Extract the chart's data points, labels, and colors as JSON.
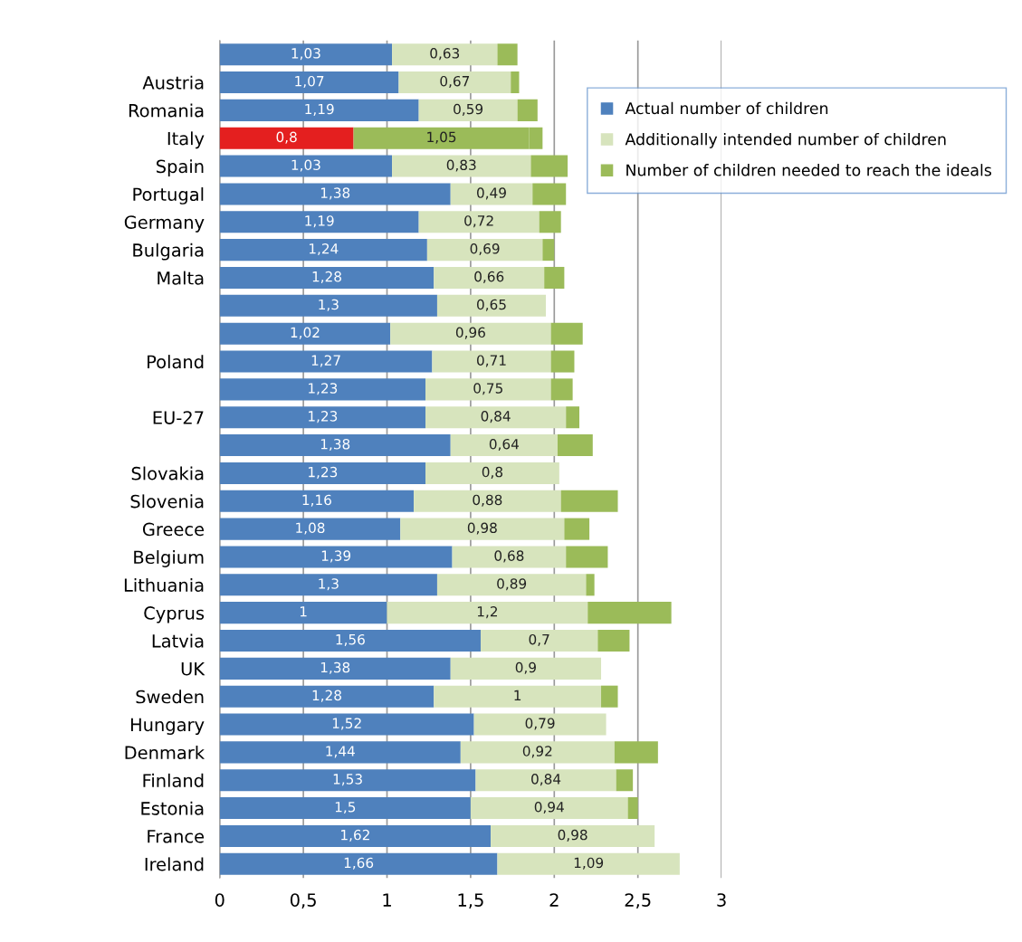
{
  "chart_data": {
    "type": "bar",
    "orientation": "horizontal",
    "stacked": true,
    "categories": [
      null,
      "Austria",
      "Romania",
      "Italy",
      "Spain",
      "Portugal",
      "Germany",
      "Bulgaria",
      "Malta",
      null,
      null,
      "Poland",
      null,
      "EU-27",
      null,
      "Slovakia",
      "Slovenia",
      "Greece",
      "Belgium",
      "Lithuania",
      "Cyprus",
      "Latvia",
      "UK",
      "Sweden",
      "Hungary",
      "Denmark",
      "Finland",
      "Estonia",
      "France",
      "Ireland"
    ],
    "series": [
      {
        "name": "Actual number of children",
        "color": "#4f81bd",
        "colors": [
          "#4f81bd",
          "#4f81bd",
          "#4f81bd",
          "#e41f1f",
          "#4f81bd",
          "#4f81bd",
          "#4f81bd",
          "#4f81bd",
          "#4f81bd",
          "#4f81bd",
          "#4f81bd",
          "#4f81bd",
          "#4f81bd",
          "#4f81bd",
          "#4f81bd",
          "#4f81bd",
          "#4f81bd",
          "#4f81bd",
          "#4f81bd",
          "#4f81bd",
          "#4f81bd",
          "#4f81bd",
          "#4f81bd",
          "#4f81bd",
          "#4f81bd",
          "#4f81bd",
          "#4f81bd",
          "#4f81bd",
          "#4f81bd",
          "#4f81bd"
        ],
        "values": [
          1.03,
          1.07,
          1.19,
          0.8,
          1.03,
          1.38,
          1.19,
          1.24,
          1.28,
          1.3,
          1.02,
          1.27,
          1.23,
          1.23,
          1.38,
          1.23,
          1.16,
          1.08,
          1.39,
          1.3,
          1,
          1.56,
          1.38,
          1.28,
          1.52,
          1.44,
          1.53,
          1.5,
          1.62,
          1.66
        ],
        "value_labels": [
          "1,03",
          "1,07",
          "1,19",
          "0,8",
          "1,03",
          "1,38",
          "1,19",
          "1,24",
          "1,28",
          "1,3",
          "1,02",
          "1,27",
          "1,23",
          "1,23",
          "1,38",
          "1,23",
          "1,16",
          "1,08",
          "1,39",
          "1,3",
          "1",
          "1,56",
          "1,38",
          "1,28",
          "1,52",
          "1,44",
          "1,53",
          "1,5",
          "1,62",
          "1,66"
        ]
      },
      {
        "name": "Additionally intended number of children",
        "color": "#d7e4bd",
        "colors": [
          "#d7e4bd",
          "#d7e4bd",
          "#d7e4bd",
          "#9bbb59",
          "#d7e4bd",
          "#d7e4bd",
          "#d7e4bd",
          "#d7e4bd",
          "#d7e4bd",
          "#d7e4bd",
          "#d7e4bd",
          "#d7e4bd",
          "#d7e4bd",
          "#d7e4bd",
          "#d7e4bd",
          "#d7e4bd",
          "#d7e4bd",
          "#d7e4bd",
          "#d7e4bd",
          "#d7e4bd",
          "#d7e4bd",
          "#d7e4bd",
          "#d7e4bd",
          "#d7e4bd",
          "#d7e4bd",
          "#d7e4bd",
          "#d7e4bd",
          "#d7e4bd",
          "#d7e4bd",
          "#d7e4bd"
        ],
        "values": [
          0.63,
          0.67,
          0.59,
          1.05,
          0.83,
          0.49,
          0.72,
          0.69,
          0.66,
          0.65,
          0.96,
          0.71,
          0.75,
          0.84,
          0.64,
          0.8,
          0.88,
          0.98,
          0.68,
          0.89,
          1.2,
          0.7,
          0.9,
          1,
          0.79,
          0.92,
          0.84,
          0.94,
          0.98,
          1.09
        ],
        "value_labels": [
          "0,63",
          "0,67",
          "0,59",
          "1,05",
          "0,83",
          "0,49",
          "0,72",
          "0,69",
          "0,66",
          "0,65",
          "0,96",
          "0,71",
          "0,75",
          "0,84",
          "0,64",
          "0,8",
          "0,88",
          "0,98",
          "0,68",
          "0,89",
          "1,2",
          "0,7",
          "0,9",
          "1",
          "0,79",
          "0,92",
          "0,84",
          "0,94",
          "0,98",
          "1,09"
        ]
      },
      {
        "name": "Number of children needed to reach the ideals",
        "color": "#9bbb59",
        "values": [
          0.12,
          0.05,
          0.12,
          0.08,
          0.22,
          0.2,
          0.13,
          0.07,
          0.12,
          null,
          0.19,
          0.14,
          0.13,
          0.08,
          0.21,
          null,
          0.34,
          0.15,
          0.25,
          0.05,
          0.5,
          0.19,
          null,
          0.1,
          null,
          0.26,
          0.1,
          0.06,
          null,
          null
        ]
      }
    ],
    "xlim": [
      0,
      3
    ],
    "xticks": [
      0,
      {
        "value": 0.5,
        "label": "0,5"
      },
      1,
      {
        "value": 1.5,
        "label": "1,5"
      },
      2,
      {
        "value": 2.5,
        "label": "2,5"
      },
      3
    ],
    "grid": "x",
    "legend": "top right"
  }
}
